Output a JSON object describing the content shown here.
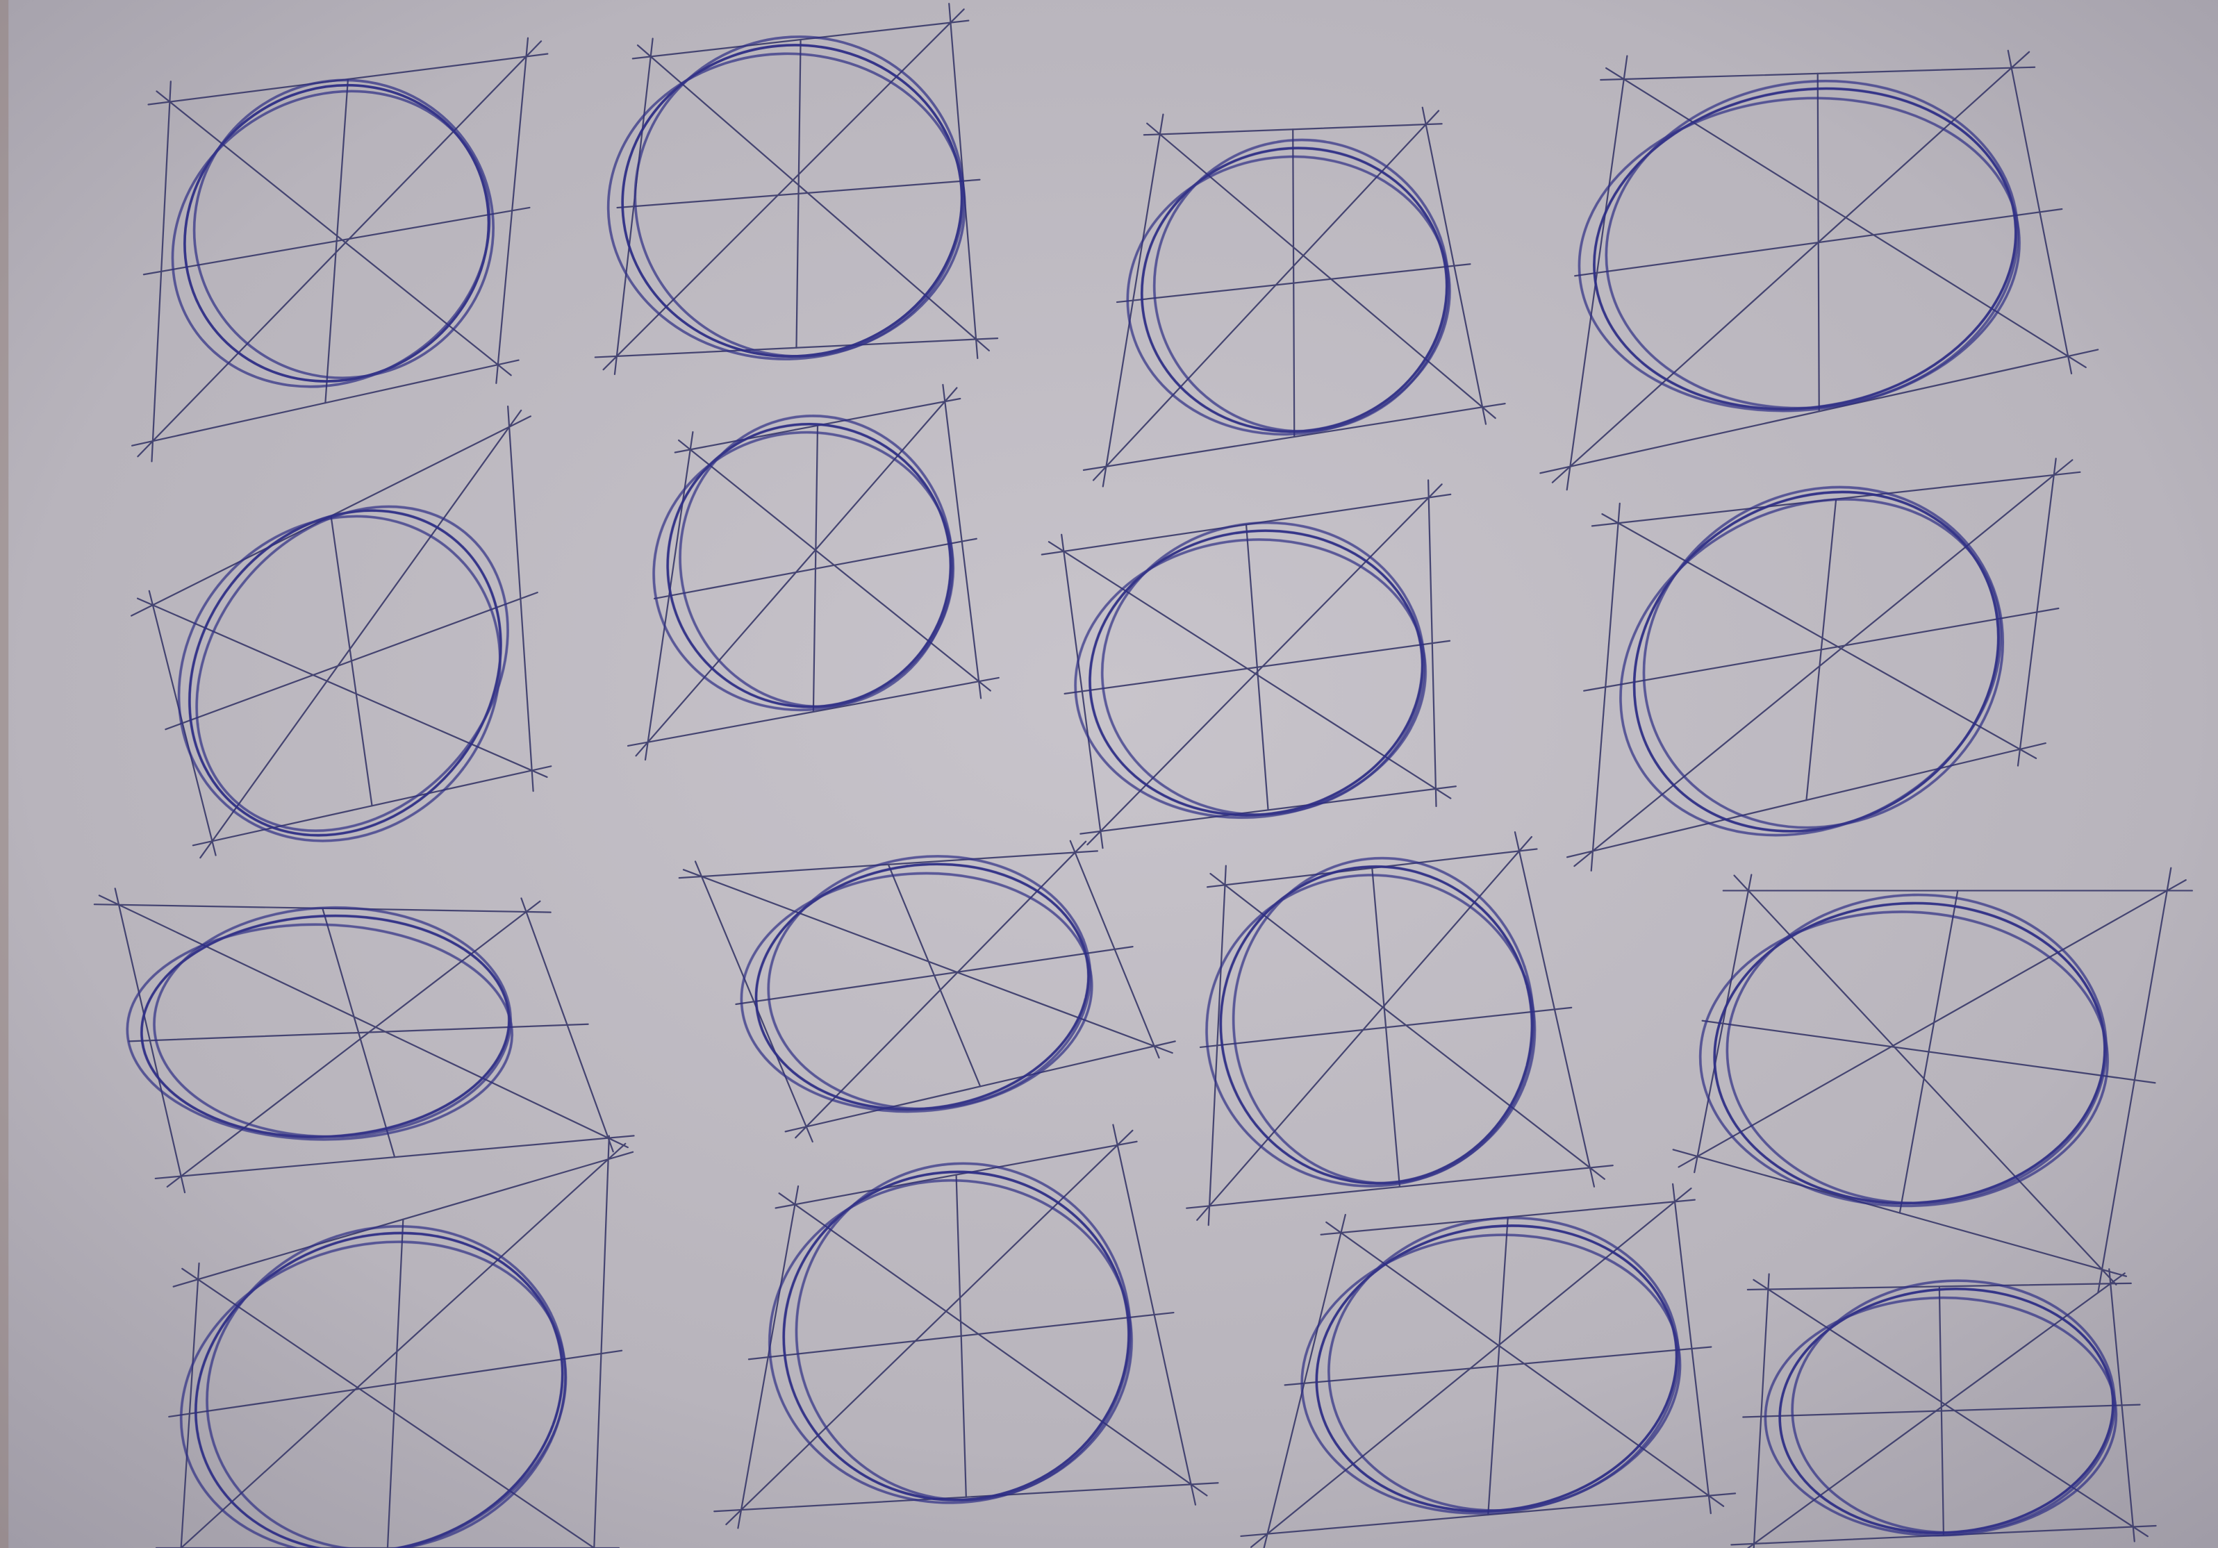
{
  "photo": {
    "subject_icon": "pen-sketch-ellipses-icon",
    "paper_color": "#b9b5bd",
    "ink_color": "#2f2f86",
    "guide_ink_color": "#3b3b6b",
    "grid": {
      "rows": 4,
      "columns": 4,
      "sketch_count": 16
    }
  }
}
